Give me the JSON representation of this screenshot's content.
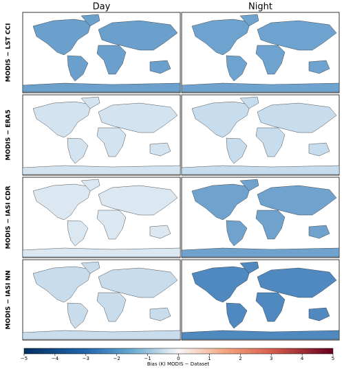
{
  "columns": [
    "Day",
    "Night"
  ],
  "rows": [
    "MODIS − LST CCI",
    "MODIS − ERA5",
    "MODIS − IASI CDR",
    "MODIS − IASI NN"
  ],
  "colorbar": {
    "label": "Bias (K) MODIS − Dataset",
    "lim": [
      -5,
      5
    ],
    "ticks": [
      {
        "value": -5,
        "label": "−5"
      },
      {
        "value": -4,
        "label": "−4"
      },
      {
        "value": -3,
        "label": "−3"
      },
      {
        "value": -2,
        "label": "−2"
      },
      {
        "value": -1,
        "label": "−1"
      },
      0,
      1,
      2,
      3,
      4,
      5
    ]
  }
}
